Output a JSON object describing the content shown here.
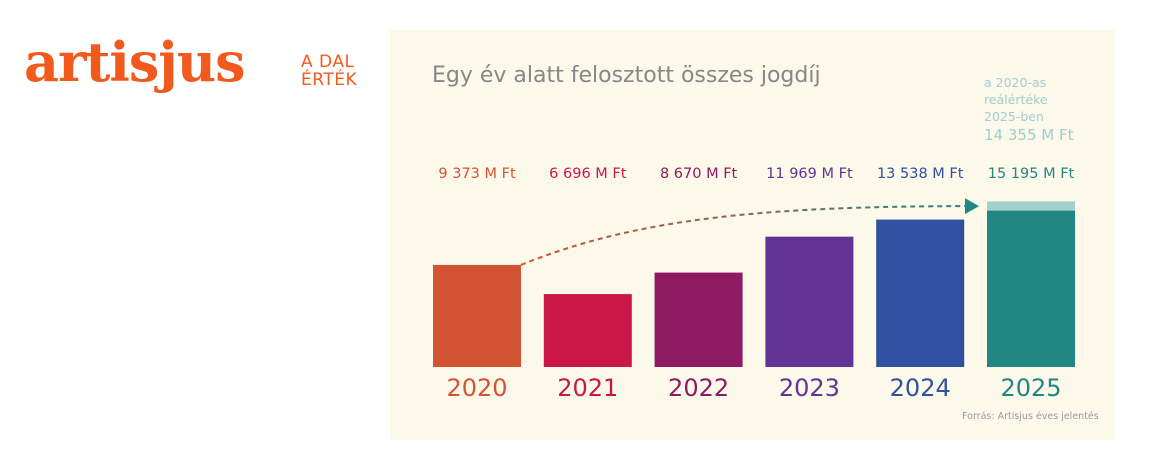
{
  "logo": {
    "name": "artisjus",
    "tagline_line1": "A DAL",
    "tagline_line2": "ÉRTÉK"
  },
  "annotation": {
    "line1": "a 2020-as",
    "line2": "reálértéke",
    "line3": "2025-ben",
    "value": "14 355 M Ft",
    "real_value": 14355,
    "color": "#a3cfcc"
  },
  "source": "Forrás: Artisjus éves jelentés",
  "chart_data": {
    "type": "bar",
    "title": "Egy év alatt felosztott összes jogdíj",
    "unit": "M Ft",
    "categories": [
      "2020",
      "2021",
      "2022",
      "2023",
      "2024",
      "2025"
    ],
    "values": [
      9373,
      6696,
      8670,
      11969,
      13538,
      15195
    ],
    "value_labels": [
      "9 373 M Ft",
      "6 696 M Ft",
      "8 670 M Ft",
      "11 969 M Ft",
      "13 538 M Ft",
      "15 195 M Ft"
    ],
    "colors": [
      "#d35433",
      "#cb1648",
      "#8e1a61",
      "#633395",
      "#2f51a0",
      "#218782"
    ],
    "arrow": {
      "from": "2020",
      "to": "2025",
      "style": "dashed"
    },
    "grid": false,
    "legend": "none"
  }
}
